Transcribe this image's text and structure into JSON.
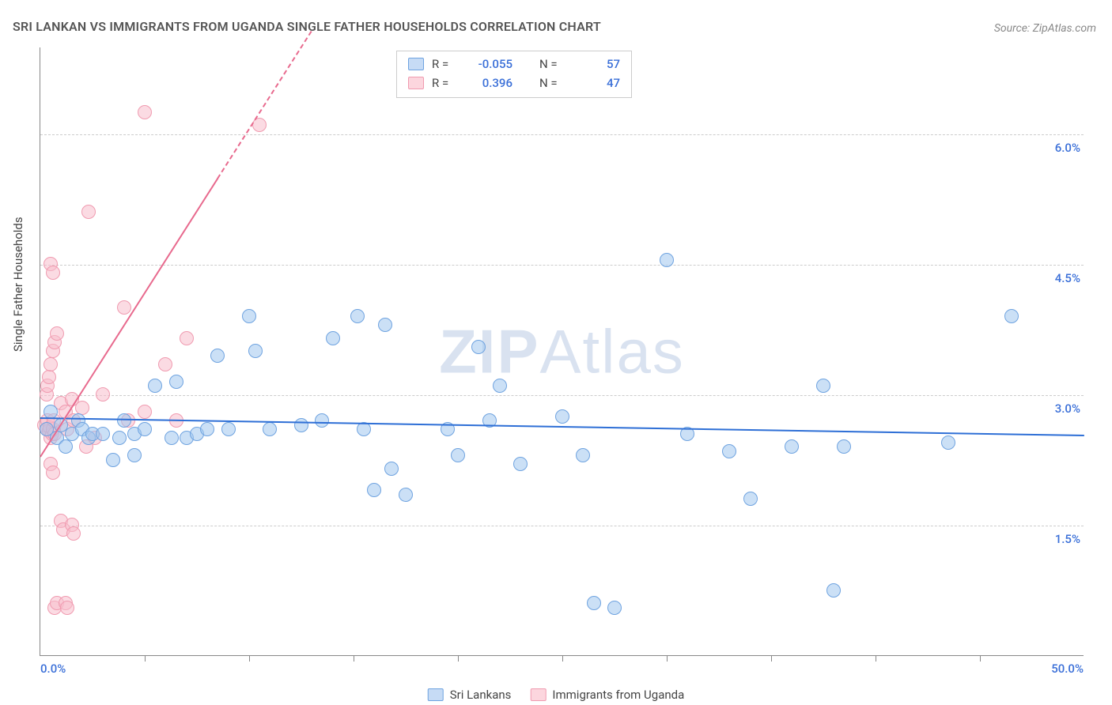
{
  "header": {
    "title": "SRI LANKAN VS IMMIGRANTS FROM UGANDA SINGLE FATHER HOUSEHOLDS CORRELATION CHART",
    "title_fontsize": 17,
    "title_color": "#555555",
    "source_prefix": "Source: ",
    "source_name": "ZipAtlas.com"
  },
  "chart": {
    "type": "scatter",
    "background_color": "#ffffff",
    "grid_color": "#cccccc",
    "axis_color": "#888888",
    "ylabel": "Single Father Households",
    "ylabel_fontsize": 15,
    "xlim": [
      0,
      50
    ],
    "ylim": [
      0,
      7.0
    ],
    "y_gridlines": [
      1.5,
      3.0,
      4.5,
      6.0
    ],
    "y_tick_labels": [
      "1.5%",
      "3.0%",
      "4.5%",
      "6.0%"
    ],
    "y_tick_color": "#3a6fd8",
    "x_ticks": [
      5,
      10,
      15,
      20,
      25,
      30,
      35,
      40,
      45
    ],
    "x_min_label": "0.0%",
    "x_max_label": "50.0%",
    "x_label_color": "#3a6fd8",
    "point_radius": 9,
    "watermark": "ZIPAtlas"
  },
  "legend_top": {
    "rows": [
      {
        "swatch_fill": "#c6dbf5",
        "swatch_stroke": "#6fa3e0",
        "r_label": "R =",
        "r": "-0.055",
        "n_label": "N =",
        "n": "57",
        "value_color": "#3a6fd8"
      },
      {
        "swatch_fill": "#fcd6de",
        "swatch_stroke": "#f09bb0",
        "r_label": "R =",
        "r": "0.396",
        "n_label": "N =",
        "n": "47",
        "value_color": "#3a6fd8"
      }
    ]
  },
  "legend_bottom": {
    "items": [
      {
        "swatch_fill": "#c6dbf5",
        "swatch_stroke": "#6fa3e0",
        "label": "Sri Lankans"
      },
      {
        "swatch_fill": "#fcd6de",
        "swatch_stroke": "#f09bb0",
        "label": "Immigrants from Uganda"
      }
    ]
  },
  "series": {
    "sri_lankans": {
      "fill_color": "rgba(160,198,238,0.55)",
      "stroke_color": "#6fa3e0",
      "trend": {
        "x1": 0,
        "y1": 2.75,
        "x2": 50,
        "y2": 2.55,
        "color": "#2e6fd6",
        "solid_to_x": 50,
        "width": 2
      },
      "points": [
        [
          0.3,
          2.6
        ],
        [
          0.5,
          2.8
        ],
        [
          0.8,
          2.5
        ],
        [
          1.0,
          2.65
        ],
        [
          1.2,
          2.4
        ],
        [
          1.5,
          2.55
        ],
        [
          1.8,
          2.7
        ],
        [
          2.0,
          2.6
        ],
        [
          2.3,
          2.5
        ],
        [
          2.5,
          2.55
        ],
        [
          3.0,
          2.55
        ],
        [
          3.5,
          2.25
        ],
        [
          3.8,
          2.5
        ],
        [
          4.0,
          2.7
        ],
        [
          4.5,
          2.55
        ],
        [
          5.0,
          2.6
        ],
        [
          5.5,
          3.1
        ],
        [
          6.3,
          2.5
        ],
        [
          6.5,
          3.15
        ],
        [
          7.0,
          2.5
        ],
        [
          7.5,
          2.55
        ],
        [
          8.0,
          2.6
        ],
        [
          8.5,
          3.45
        ],
        [
          9.0,
          2.6
        ],
        [
          10.0,
          3.9
        ],
        [
          10.3,
          3.5
        ],
        [
          11.0,
          2.6
        ],
        [
          12.5,
          2.65
        ],
        [
          13.5,
          2.7
        ],
        [
          14.0,
          3.65
        ],
        [
          15.2,
          3.9
        ],
        [
          15.5,
          2.6
        ],
        [
          16.0,
          1.9
        ],
        [
          16.5,
          3.8
        ],
        [
          16.8,
          2.15
        ],
        [
          17.5,
          1.85
        ],
        [
          19.5,
          2.6
        ],
        [
          20.0,
          2.3
        ],
        [
          21.0,
          3.55
        ],
        [
          21.5,
          2.7
        ],
        [
          22.0,
          3.1
        ],
        [
          23.0,
          2.2
        ],
        [
          25.0,
          2.75
        ],
        [
          26.0,
          2.3
        ],
        [
          26.5,
          0.6
        ],
        [
          27.5,
          0.55
        ],
        [
          30.0,
          4.55
        ],
        [
          31.0,
          2.55
        ],
        [
          33.0,
          2.35
        ],
        [
          34.0,
          1.8
        ],
        [
          36.0,
          2.4
        ],
        [
          37.5,
          3.1
        ],
        [
          38.5,
          2.4
        ],
        [
          38.0,
          0.75
        ],
        [
          43.5,
          2.45
        ],
        [
          46.5,
          3.9
        ],
        [
          4.5,
          2.3
        ]
      ]
    },
    "uganda": {
      "fill_color": "rgba(248,190,204,0.55)",
      "stroke_color": "#f09bb0",
      "trend": {
        "x1": 0,
        "y1": 2.3,
        "x2": 13,
        "y2": 7.2,
        "color": "#e86a8e",
        "solid_to_x": 8.5,
        "width": 2
      },
      "points": [
        [
          0.2,
          2.65
        ],
        [
          0.3,
          2.6
        ],
        [
          0.35,
          2.7
        ],
        [
          0.4,
          2.58
        ],
        [
          0.45,
          2.62
        ],
        [
          0.5,
          2.5
        ],
        [
          0.55,
          2.55
        ],
        [
          0.6,
          2.6
        ],
        [
          0.65,
          2.7
        ],
        [
          0.7,
          2.55
        ],
        [
          0.3,
          3.0
        ],
        [
          0.35,
          3.1
        ],
        [
          0.4,
          3.2
        ],
        [
          0.5,
          3.35
        ],
        [
          0.6,
          3.5
        ],
        [
          0.7,
          3.6
        ],
        [
          0.8,
          3.7
        ],
        [
          0.5,
          4.5
        ],
        [
          0.6,
          4.4
        ],
        [
          1.0,
          2.9
        ],
        [
          1.2,
          2.8
        ],
        [
          1.3,
          2.6
        ],
        [
          1.5,
          2.95
        ],
        [
          1.6,
          2.7
        ],
        [
          2.0,
          2.85
        ],
        [
          2.3,
          5.1
        ],
        [
          3.0,
          3.0
        ],
        [
          4.0,
          4.0
        ],
        [
          4.2,
          2.7
        ],
        [
          5.0,
          2.8
        ],
        [
          5.0,
          6.25
        ],
        [
          6.0,
          3.35
        ],
        [
          6.5,
          2.7
        ],
        [
          7.0,
          3.65
        ],
        [
          10.5,
          6.1
        ],
        [
          0.5,
          2.2
        ],
        [
          0.6,
          2.1
        ],
        [
          0.7,
          0.55
        ],
        [
          0.8,
          0.6
        ],
        [
          1.0,
          1.55
        ],
        [
          1.1,
          1.45
        ],
        [
          1.2,
          0.6
        ],
        [
          1.3,
          0.55
        ],
        [
          1.5,
          1.5
        ],
        [
          1.6,
          1.4
        ],
        [
          2.2,
          2.4
        ],
        [
          2.6,
          2.5
        ]
      ]
    }
  }
}
